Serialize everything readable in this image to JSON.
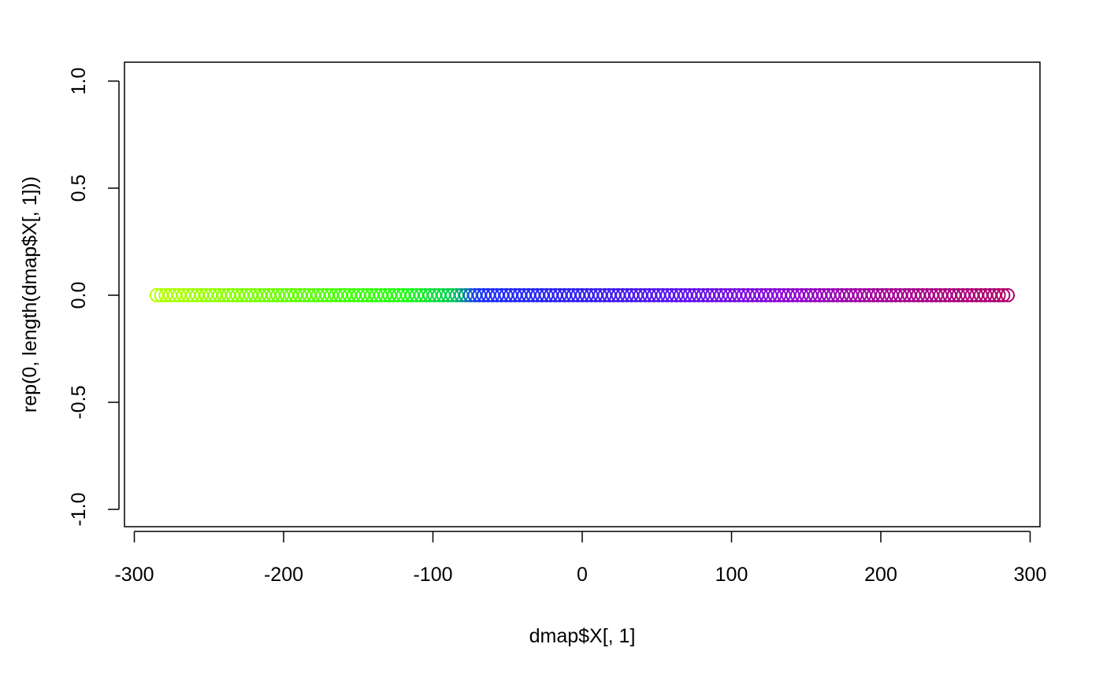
{
  "chart_data": {
    "type": "scatter",
    "title": "",
    "xlabel": "dmap$X[, 1]",
    "ylabel": "rep(0, length(dmap$X[, 1]))",
    "xlim": [
      -291,
      307
    ],
    "ylim": [
      -1.08,
      1.08
    ],
    "x_ticks": [
      -300,
      -200,
      -100,
      0,
      100,
      200,
      300
    ],
    "x_tick_labels": [
      "-300",
      "-200",
      "-100",
      "0",
      "100",
      "200",
      "300"
    ],
    "y_ticks": [
      -1.0,
      -0.5,
      0.0,
      0.5,
      1.0
    ],
    "y_tick_labels": [
      "-1.0",
      "-0.5",
      "0.0",
      "0.5",
      "1.0"
    ],
    "grid": false,
    "legend": "none",
    "marker": "open-circle",
    "series": [
      {
        "color_gradient": [
          {
            "x": -285,
            "color": "#b8ff00"
          },
          {
            "x": -200,
            "color": "#66ff00"
          },
          {
            "x": -120,
            "color": "#22ff11"
          },
          {
            "x": -85,
            "color": "#00cc55"
          },
          {
            "x": -70,
            "color": "#1a30ff"
          },
          {
            "x": 0,
            "color": "#3320ee"
          },
          {
            "x": 60,
            "color": "#5a14f0"
          },
          {
            "x": 130,
            "color": "#8a08d8"
          },
          {
            "x": 200,
            "color": "#a2009a"
          },
          {
            "x": 285,
            "color": "#b0006a"
          }
        ],
        "x": [
          -285,
          -282,
          -279,
          -276,
          -273,
          -270,
          -267,
          -264,
          -261,
          -258,
          -255,
          -252,
          -249,
          -246,
          -243,
          -240,
          -237,
          -234,
          -231,
          -228,
          -225,
          -222,
          -219,
          -216,
          -213,
          -210,
          -207,
          -204,
          -201,
          -198,
          -195,
          -192,
          -189,
          -186,
          -183,
          -180,
          -177,
          -174,
          -171,
          -168,
          -165,
          -162,
          -159,
          -156,
          -153,
          -150,
          -147,
          -144,
          -141,
          -138,
          -135,
          -132,
          -129,
          -126,
          -123,
          -120,
          -117,
          -114,
          -111,
          -108,
          -105,
          -102,
          -99,
          -96,
          -93,
          -90,
          -87,
          -84,
          -81,
          -78,
          -75,
          -72,
          -69,
          -66,
          -63,
          -60,
          -57,
          -54,
          -51,
          -48,
          -45,
          -42,
          -39,
          -36,
          -33,
          -30,
          -27,
          -24,
          -21,
          -18,
          -15,
          -12,
          -9,
          -6,
          -3,
          0,
          3,
          6,
          9,
          12,
          15,
          18,
          21,
          24,
          27,
          30,
          33,
          36,
          39,
          42,
          45,
          48,
          51,
          54,
          57,
          60,
          63,
          66,
          69,
          72,
          75,
          78,
          81,
          84,
          87,
          90,
          93,
          96,
          99,
          102,
          105,
          108,
          111,
          114,
          117,
          120,
          123,
          126,
          129,
          132,
          135,
          138,
          141,
          144,
          147,
          150,
          153,
          156,
          159,
          162,
          165,
          168,
          171,
          174,
          177,
          180,
          183,
          186,
          189,
          192,
          195,
          198,
          201,
          204,
          207,
          210,
          213,
          216,
          219,
          222,
          225,
          228,
          231,
          234,
          237,
          240,
          243,
          246,
          249,
          252,
          255,
          258,
          261,
          264,
          267,
          270,
          273,
          276,
          279,
          282,
          285
        ],
        "y_constant": 0
      }
    ]
  }
}
